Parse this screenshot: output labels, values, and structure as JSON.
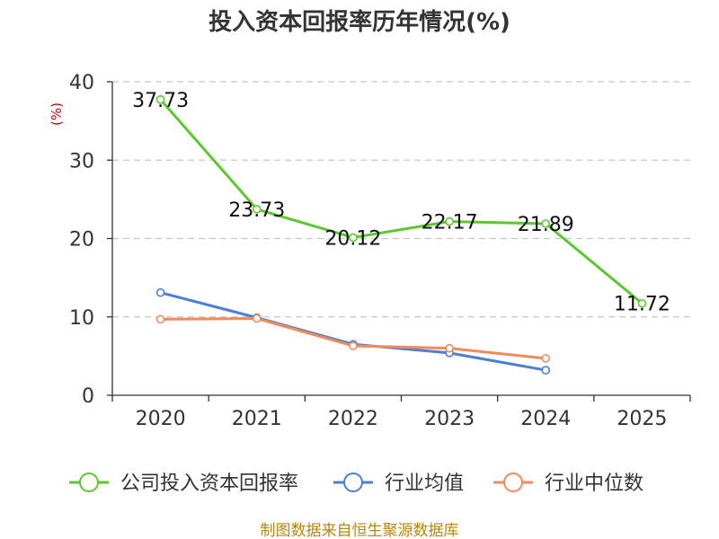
{
  "chart_data": {
    "type": "line",
    "title": "投入资本回报率历年情况(%)",
    "ylabel": "(%)",
    "xlabel": "",
    "ylim": [
      0,
      40
    ],
    "yticks": [
      0,
      10,
      20,
      30,
      40
    ],
    "categories": [
      "2020",
      "2021",
      "2022",
      "2023",
      "2024",
      "2025"
    ],
    "series": [
      {
        "name": "公司投入资本回报率",
        "color": "#5cc72e",
        "values": [
          37.73,
          23.73,
          20.12,
          22.17,
          21.89,
          11.72
        ],
        "labels": [
          "37.73",
          "23.73",
          "20.12",
          "22.17",
          "21.89",
          "11.72"
        ]
      },
      {
        "name": "行业均值",
        "color": "#4a7fd6",
        "values": [
          13.1,
          9.9,
          6.5,
          5.4,
          3.2,
          null
        ]
      },
      {
        "name": "行业中位数",
        "color": "#f08c5a",
        "values": [
          9.7,
          9.8,
          6.3,
          6.0,
          4.7,
          null
        ]
      }
    ],
    "grid": true,
    "legend": "bottom"
  },
  "source": "制图数据来自恒生聚源数据库"
}
